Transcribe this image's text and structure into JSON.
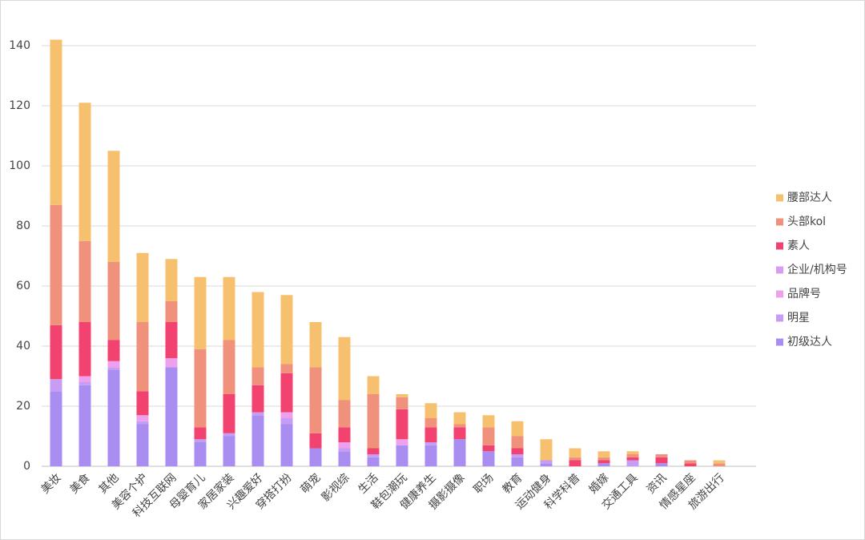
{
  "chart_data": {
    "type": "stacked_bar",
    "categories": [
      "美妆",
      "美食",
      "其他",
      "美容个护",
      "科技互联网",
      "母婴育儿",
      "家居家装",
      "兴趣爱好",
      "穿搭打扮",
      "萌宠",
      "影视综",
      "生活",
      "鞋包潮玩",
      "健康养生",
      "摄影摄像",
      "职场",
      "教育",
      "运动健身",
      "科学科普",
      "婚嫁",
      "交通工具",
      "资讯",
      "情感星座",
      "旅游出行"
    ],
    "series": [
      {
        "name": "初级达人",
        "color": "#a98df0",
        "values": [
          25,
          27,
          32,
          14,
          33,
          8,
          10,
          17,
          14,
          6,
          5,
          3,
          7,
          7,
          9,
          5,
          3,
          1,
          0,
          1,
          0,
          1,
          0,
          0
        ]
      },
      {
        "name": "明星",
        "color": "#c79cf4",
        "values": [
          4,
          1,
          1,
          1,
          0,
          1,
          1,
          1,
          2,
          0,
          1,
          1,
          0,
          1,
          0,
          0,
          1,
          1,
          0,
          0,
          2,
          0,
          0,
          0
        ]
      },
      {
        "name": "品牌号",
        "color": "#eea0ee",
        "values": [
          0,
          2,
          2,
          2,
          3,
          0,
          0,
          0,
          2,
          0,
          2,
          0,
          2,
          0,
          0,
          0,
          0,
          0,
          0,
          0,
          0,
          0,
          0,
          0
        ]
      },
      {
        "name": "企业/机构号",
        "color": "#d99cf2",
        "values": [
          0,
          0,
          0,
          0,
          0,
          0,
          0,
          0,
          0,
          0,
          0,
          0,
          0,
          0,
          0,
          0,
          0,
          0,
          0,
          0,
          0,
          0,
          0,
          0
        ]
      },
      {
        "name": "素人",
        "color": "#f2426f",
        "values": [
          18,
          18,
          7,
          8,
          12,
          4,
          13,
          9,
          13,
          5,
          5,
          2,
          10,
          5,
          4,
          2,
          2,
          0,
          2,
          1,
          1,
          2,
          1,
          0
        ]
      },
      {
        "name": "头部kol",
        "color": "#f0917b",
        "values": [
          40,
          27,
          26,
          23,
          7,
          26,
          18,
          6,
          3,
          22,
          9,
          18,
          4,
          3,
          1,
          6,
          4,
          0,
          1,
          1,
          1,
          1,
          1,
          1
        ]
      },
      {
        "name": "腰部达人",
        "color": "#f6c06e",
        "values": [
          55,
          46,
          37,
          23,
          14,
          24,
          21,
          25,
          23,
          15,
          21,
          6,
          1,
          5,
          4,
          4,
          5,
          7,
          3,
          2,
          1,
          0,
          0,
          1
        ]
      }
    ],
    "ylim": [
      0,
      140
    ],
    "yticks": [
      0,
      20,
      40,
      60,
      80,
      100,
      120,
      140
    ],
    "grid": true,
    "legend": "right"
  }
}
